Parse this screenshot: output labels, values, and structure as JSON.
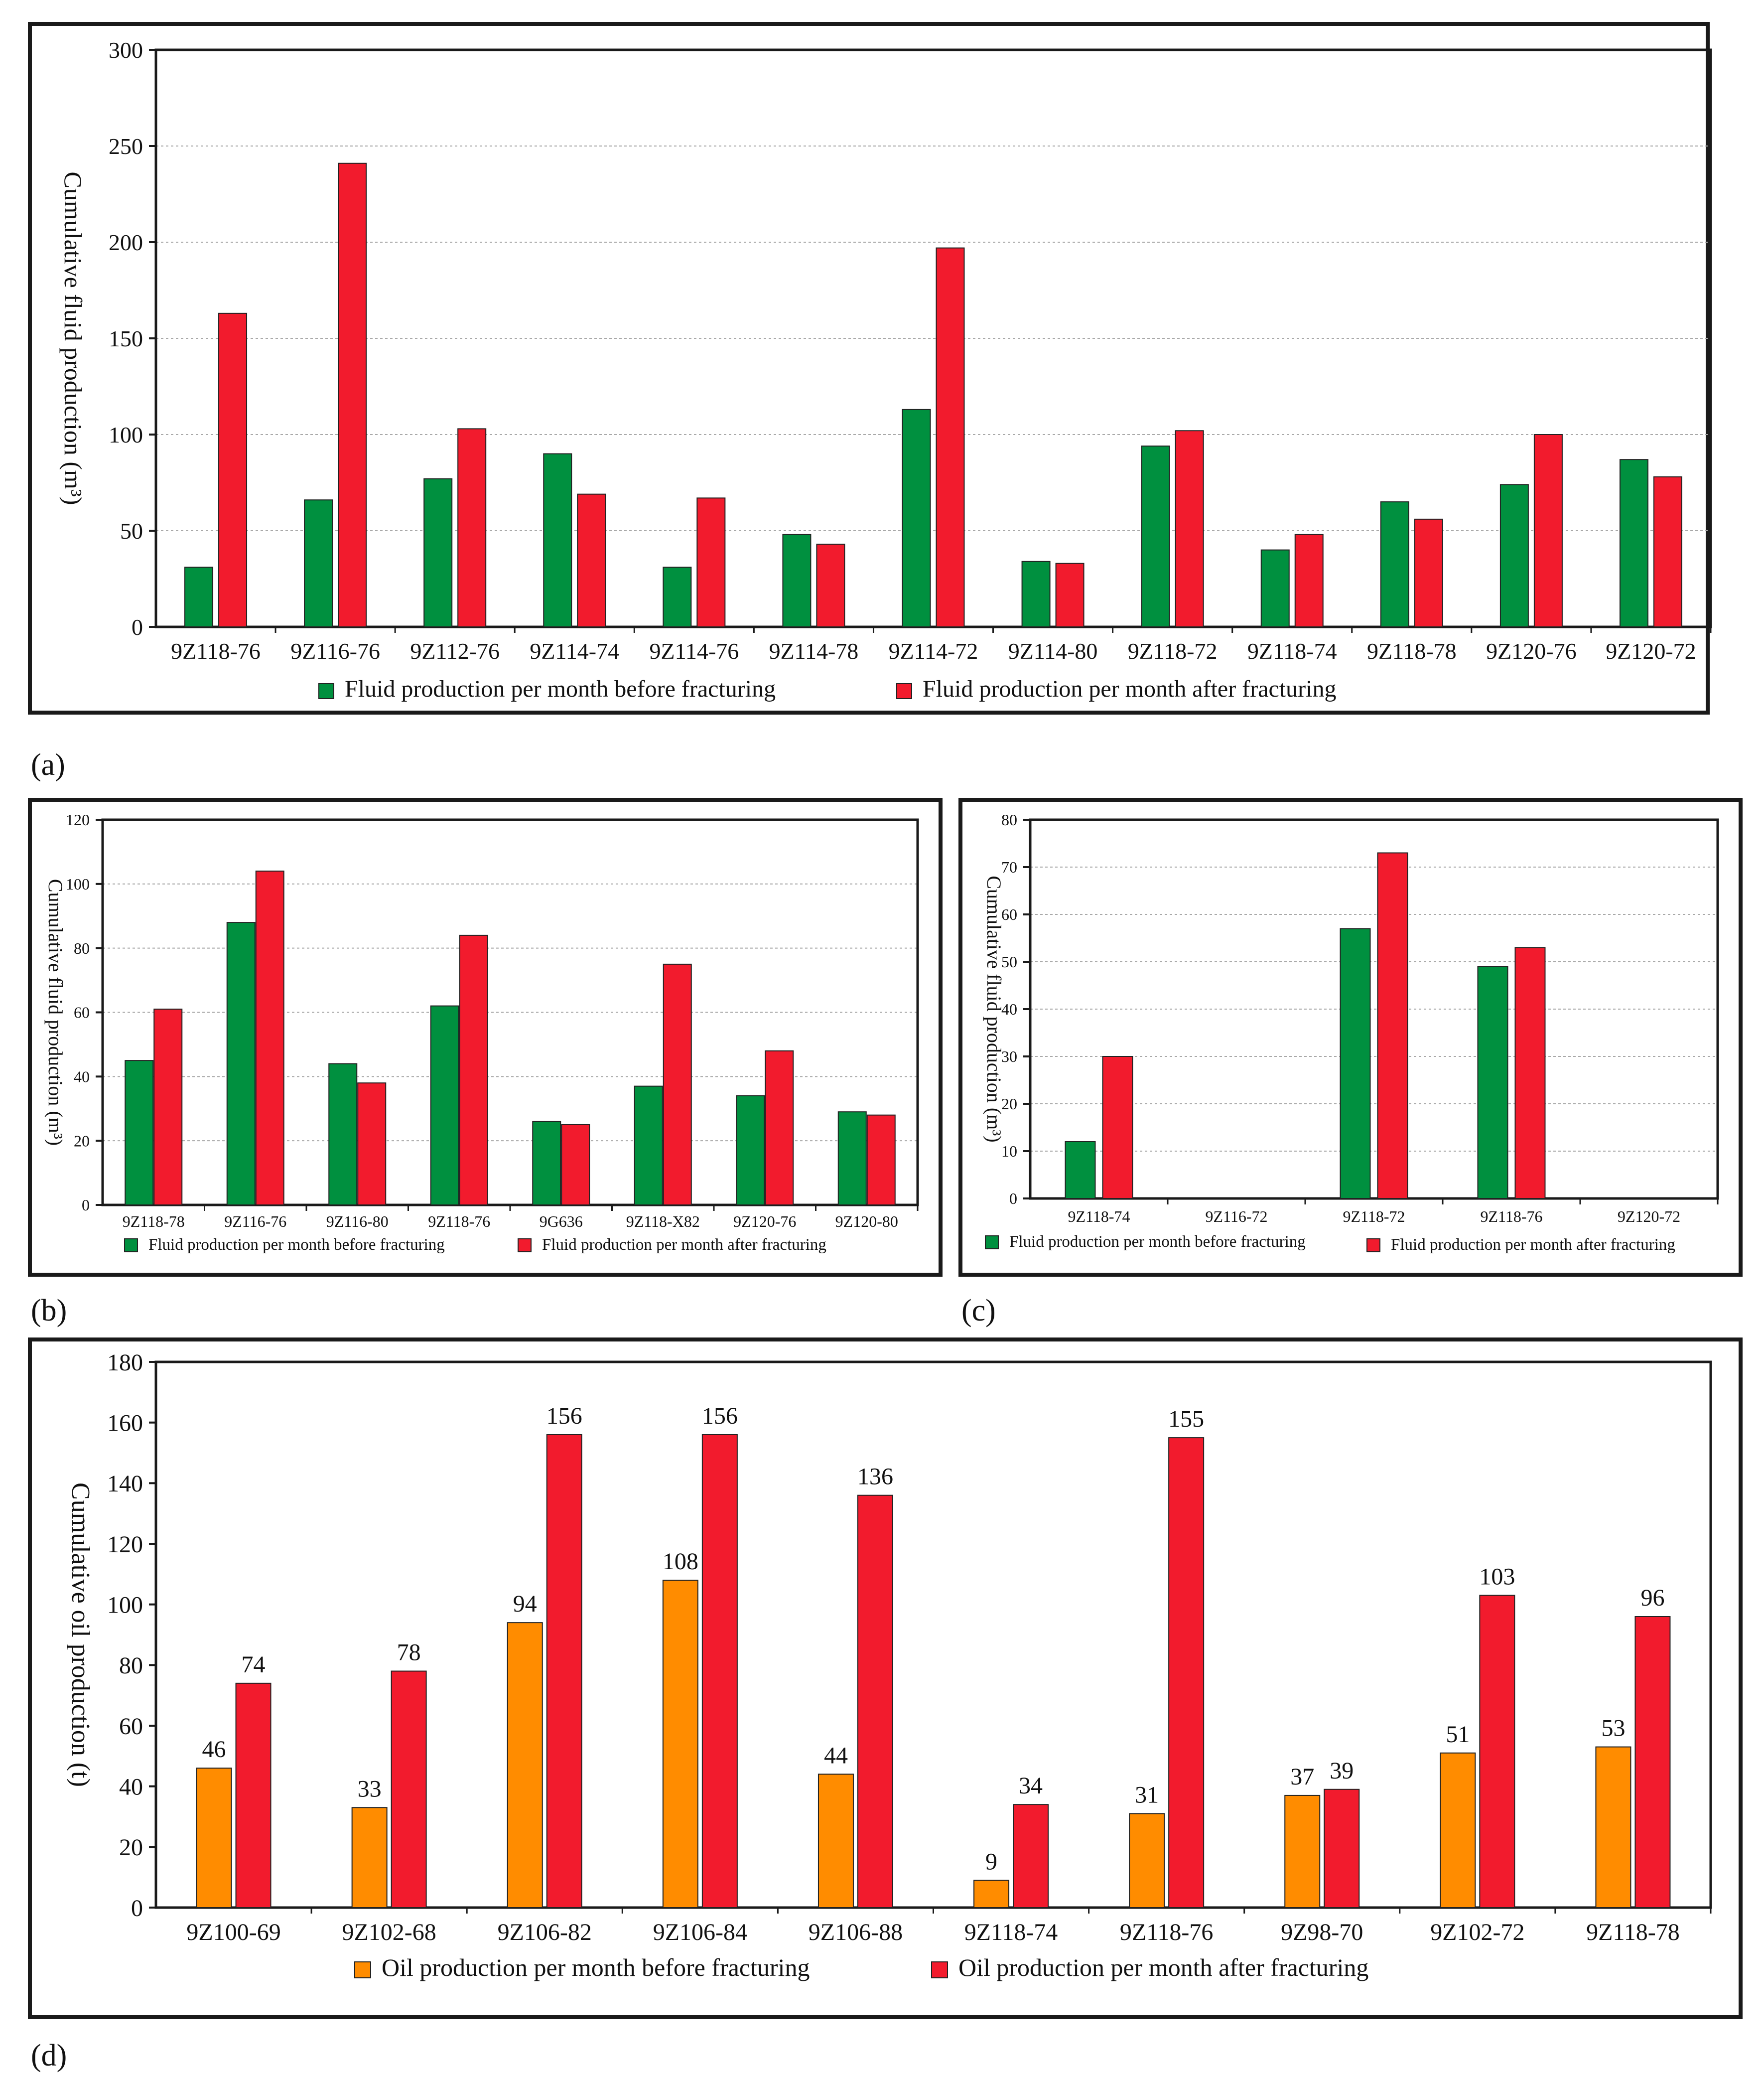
{
  "colors": {
    "green": "#00903f",
    "red": "#f21b2d",
    "orange": "#ff8c00",
    "grid": "#a8a8a8",
    "frame": "#1a1a1a"
  },
  "chart_data": [
    {
      "panel_label": "(a)",
      "type": "bar",
      "title": "",
      "xlabel": "",
      "ylabel": "Cumulative fluid production (m³)",
      "ylim": [
        0,
        300
      ],
      "yticks": [
        0,
        50,
        100,
        150,
        200,
        250,
        300
      ],
      "grid": true,
      "legend_position": "bottom",
      "categories": [
        "9Z118-76",
        "9Z116-76",
        "9Z112-76",
        "9Z114-74",
        "9Z114-76",
        "9Z114-78",
        "9Z114-72",
        "9Z114-80",
        "9Z118-72",
        "9Z118-74",
        "9Z118-78",
        "9Z120-76",
        "9Z120-72"
      ],
      "series": [
        {
          "name": "Fluid production per month before fracturing",
          "color": "#00903f",
          "values": [
            31,
            66,
            77,
            90,
            31,
            48,
            113,
            34,
            94,
            40,
            65,
            74,
            87
          ]
        },
        {
          "name": "Fluid production per month after fracturing",
          "color": "#f21b2d",
          "values": [
            163,
            241,
            103,
            69,
            67,
            43,
            197,
            33,
            102,
            48,
            56,
            100,
            78
          ]
        }
      ]
    },
    {
      "panel_label": "(b)",
      "type": "bar",
      "title": "",
      "xlabel": "",
      "ylabel": "Cumulative fluid production (m³)",
      "ylim": [
        0,
        120
      ],
      "yticks": [
        0,
        20,
        40,
        60,
        80,
        100,
        120
      ],
      "grid": true,
      "legend_position": "bottom",
      "categories": [
        "9Z118-78",
        "9Z116-76",
        "9Z116-80",
        "9Z118-76",
        "9G636",
        "9Z118-X82",
        "9Z120-76",
        "9Z120-80"
      ],
      "series": [
        {
          "name": "Fluid production per month before fracturing",
          "color": "#00903f",
          "values": [
            45,
            88,
            44,
            62,
            26,
            37,
            34,
            29
          ]
        },
        {
          "name": "Fluid production per month after fracturing",
          "color": "#f21b2d",
          "values": [
            61,
            104,
            38,
            84,
            25,
            75,
            48,
            28
          ]
        }
      ]
    },
    {
      "panel_label": "(c)",
      "type": "bar",
      "title": "",
      "xlabel": "",
      "ylabel": "Cumulative fluid production (m³)",
      "ylim": [
        0,
        80
      ],
      "yticks": [
        0,
        10,
        20,
        30,
        40,
        50,
        60,
        70,
        80
      ],
      "grid": true,
      "legend_position": "bottom",
      "categories": [
        "9Z118-74",
        "9Z116-72",
        "9Z118-72",
        "9Z118-76",
        "9Z120-72"
      ],
      "series": [
        {
          "name": "Fluid production per month before fracturing",
          "color": "#00903f",
          "values": [
            12,
            0,
            57,
            49,
            0
          ]
        },
        {
          "name": "Fluid production per month after fracturing",
          "color": "#f21b2d",
          "values": [
            30,
            0,
            73,
            53,
            0
          ]
        }
      ]
    },
    {
      "panel_label": "(d)",
      "type": "bar",
      "title": "",
      "xlabel": "",
      "ylabel": "Cumulative oil production (t)",
      "ylim": [
        0,
        180
      ],
      "yticks": [
        0,
        20,
        40,
        60,
        80,
        100,
        120,
        140,
        160,
        180
      ],
      "grid": false,
      "legend_position": "bottom",
      "categories": [
        "9Z100-69",
        "9Z102-68",
        "9Z106-82",
        "9Z106-84",
        "9Z106-88",
        "9Z118-74",
        "9Z118-76",
        "9Z98-70",
        "9Z102-72",
        "9Z118-78"
      ],
      "series": [
        {
          "name": "Oil production per month before fracturing",
          "color": "#ff8c00",
          "values": [
            46,
            33,
            94,
            108,
            44,
            9,
            31,
            37,
            51,
            53
          ]
        },
        {
          "name": "Oil production per month after fracturing",
          "color": "#f21b2d",
          "values": [
            74,
            78,
            156,
            156,
            136,
            34,
            155,
            39,
            103,
            96
          ]
        }
      ]
    }
  ]
}
